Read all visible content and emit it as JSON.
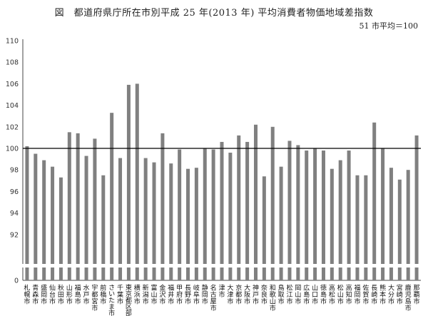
{
  "chart_data": {
    "type": "bar",
    "title": "図　都道府県庁所在市別平成 25 年(2013 年) 平均消費者物価地域差指数",
    "note": "51 市平均＝100",
    "baseline": 100,
    "ylim": [
      90,
      110
    ],
    "y_ticks": [
      "110",
      "108",
      "106",
      "104",
      "102",
      "100",
      "98",
      "96",
      "94",
      "92",
      "0"
    ],
    "axis_break": true,
    "grid": false,
    "colors": {
      "bar": "#808080",
      "baseline": "#000000",
      "axis": "#444444"
    },
    "categories": [
      "札幌市",
      "青森市",
      "盛岡市",
      "仙台市",
      "秋田市",
      "山形市",
      "福島市",
      "水戸市",
      "宇都宮市",
      "前橋市",
      "さいたま市",
      "千葉市",
      "東京都区部",
      "横浜市",
      "新潟市",
      "富山市",
      "金沢市",
      "福井市",
      "甲府市",
      "長野市",
      "岐阜市",
      "静岡市",
      "名古屋市",
      "津市",
      "大津市",
      "京都市",
      "大阪市",
      "神戸市",
      "奈良市",
      "和歌山市",
      "鳥取市",
      "松江市",
      "岡山市",
      "広島市",
      "山口市",
      "徳島市",
      "高松市",
      "松山市",
      "高知市",
      "福岡市",
      "佐賀市",
      "長崎市",
      "熊本市",
      "大分市",
      "宮崎市",
      "鹿児島市",
      "那覇市"
    ],
    "values": [
      100.2,
      99.5,
      98.9,
      98.3,
      97.3,
      101.5,
      101.4,
      99.3,
      100.9,
      97.5,
      103.3,
      99.1,
      105.9,
      106.0,
      99.1,
      98.7,
      101.4,
      98.6,
      99.9,
      98.1,
      98.2,
      100.0,
      99.9,
      100.6,
      99.6,
      101.2,
      100.6,
      102.2,
      97.4,
      102.0,
      98.3,
      100.7,
      100.3,
      99.8,
      100.0,
      99.8,
      98.1,
      98.9,
      99.8,
      97.5,
      97.5,
      102.4,
      100.0,
      98.2,
      97.1,
      98.0,
      101.2
    ]
  }
}
